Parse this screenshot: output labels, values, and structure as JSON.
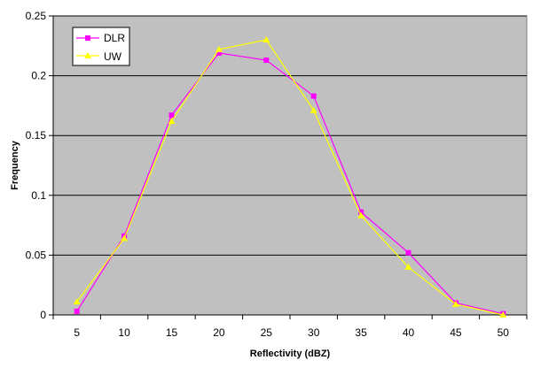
{
  "chart_data": {
    "type": "line",
    "title": "",
    "xlabel": "Reflectivity (dBZ)",
    "ylabel": "Frequency",
    "categories": [
      "5",
      "10",
      "15",
      "20",
      "25",
      "30",
      "35",
      "40",
      "45",
      "50"
    ],
    "ylim": [
      0,
      0.25
    ],
    "yticks": [
      "0",
      "0.05",
      "0.1",
      "0.15",
      "0.2",
      "0.25"
    ],
    "grid": true,
    "legend_position": "top-left",
    "plot_background": "#c0c0c0",
    "series": [
      {
        "name": "DLR",
        "color": "#ff00ff",
        "marker": "square",
        "values": [
          0.003,
          0.066,
          0.167,
          0.219,
          0.213,
          0.183,
          0.086,
          0.052,
          0.01,
          0.001
        ]
      },
      {
        "name": "UW",
        "color": "#ffff00",
        "marker": "triangle",
        "values": [
          0.011,
          0.064,
          0.162,
          0.222,
          0.23,
          0.171,
          0.083,
          0.04,
          0.009,
          0.0
        ]
      }
    ]
  }
}
